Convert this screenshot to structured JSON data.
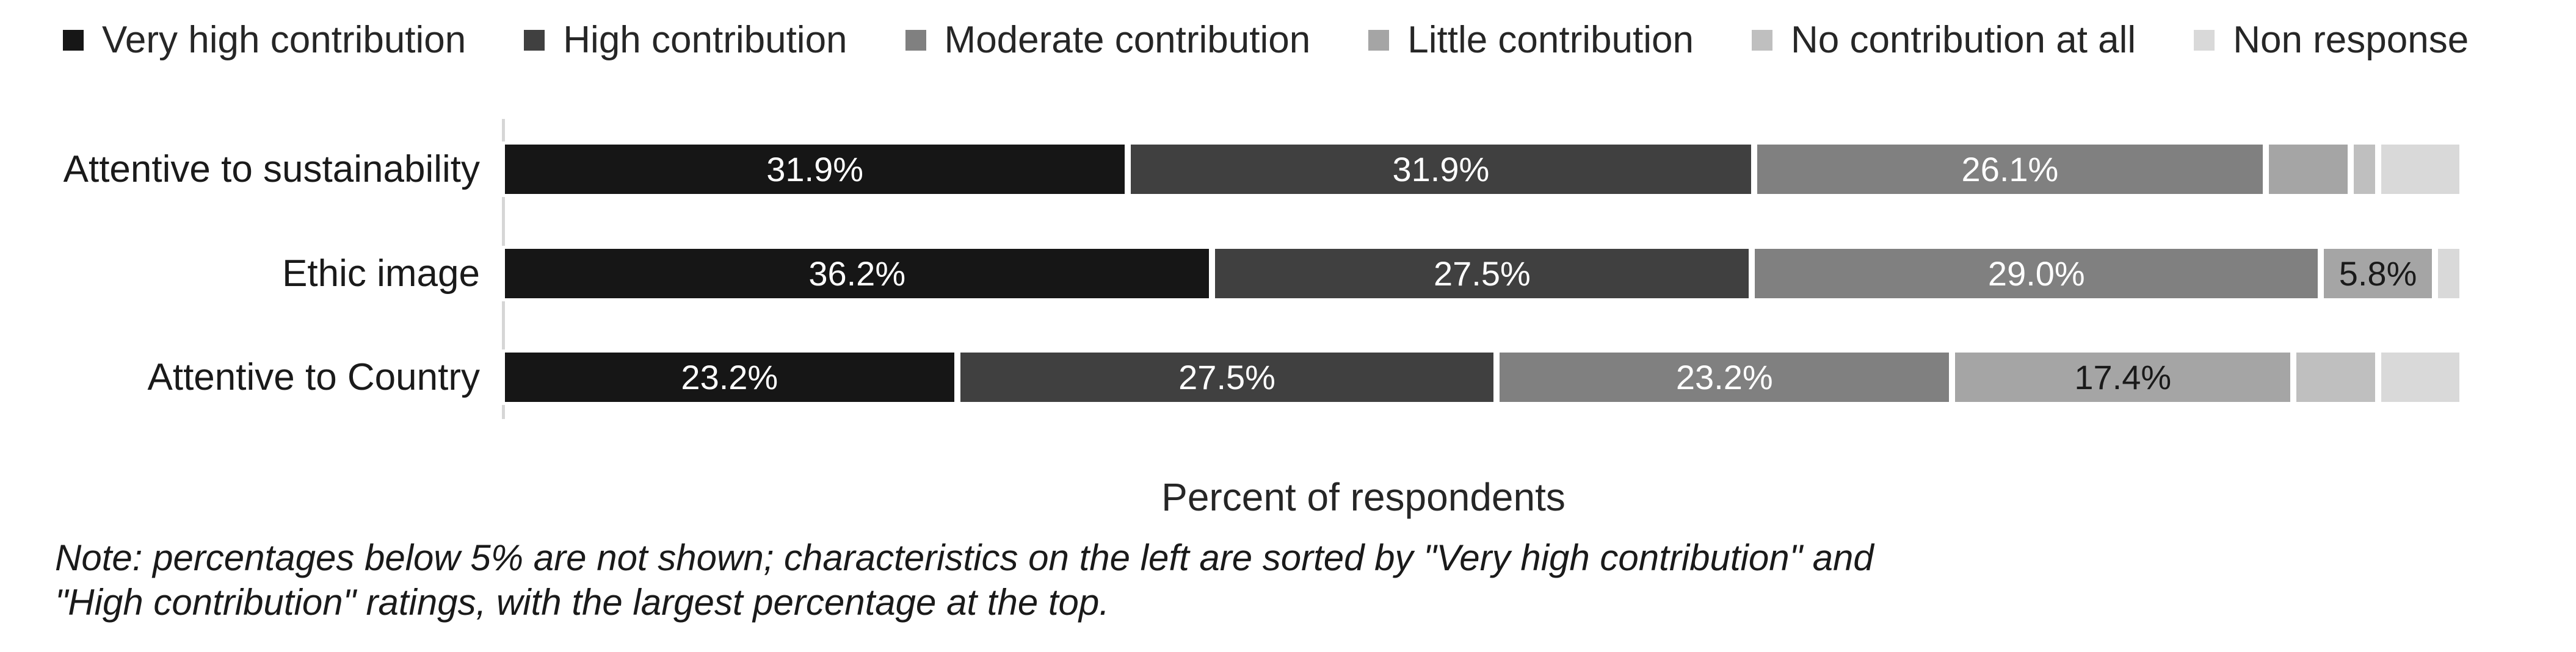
{
  "chart_data": {
    "type": "bar",
    "orientation": "horizontal-stacked",
    "unit": "percent",
    "title": "",
    "xlabel": "Percent of respondents",
    "ylabel": "",
    "xlim": [
      0,
      100
    ],
    "grid": false,
    "legend_position": "top",
    "label_rule": "percentages below 5% are not shown",
    "min_label_pct": 5,
    "categories": [
      "Attentive to sustainability",
      "Ethic image",
      "Attentive to Country"
    ],
    "series": [
      {
        "name": "Very high contribution",
        "color": "#161616",
        "label_color": "#ffffff",
        "values": [
          31.9,
          36.2,
          23.2
        ]
      },
      {
        "name": "High contribution",
        "color": "#404040",
        "label_color": "#ffffff",
        "values": [
          31.9,
          27.5,
          27.5
        ]
      },
      {
        "name": "Moderate contribution",
        "color": "#808080",
        "label_color": "#ffffff",
        "values": [
          26.1,
          29.0,
          23.2
        ]
      },
      {
        "name": "Little contribution",
        "color": "#a5a5a5",
        "label_color": "#1a1a1a",
        "values": [
          4.3,
          5.8,
          17.4
        ]
      },
      {
        "name": "No contribution at all",
        "color": "#bfbfbf",
        "label_color": "#1a1a1a",
        "values": [
          1.4,
          0,
          4.3
        ]
      },
      {
        "name": "Non response",
        "color": "#d9d9d9",
        "label_color": "#1a1a1a",
        "values": [
          4.3,
          1.4,
          4.3
        ]
      }
    ],
    "shown_data_labels": {
      "Attentive to sustainability": [
        "31.9%",
        "31.9%",
        "26.1%"
      ],
      "Ethic image": [
        "36.2%",
        "27.5%",
        "29.0%",
        "5.8%"
      ],
      "Attentive to Country": [
        "23.2%",
        "27.5%",
        "23.2%",
        "17.4%"
      ]
    }
  },
  "axis_title": "Percent of respondents",
  "note": {
    "line1": "Note: percentages below 5% are not shown; characteristics on the left are sorted by \"Very high contribution\" and",
    "line2": "\"High contribution\" ratings, with the largest percentage at the top."
  }
}
